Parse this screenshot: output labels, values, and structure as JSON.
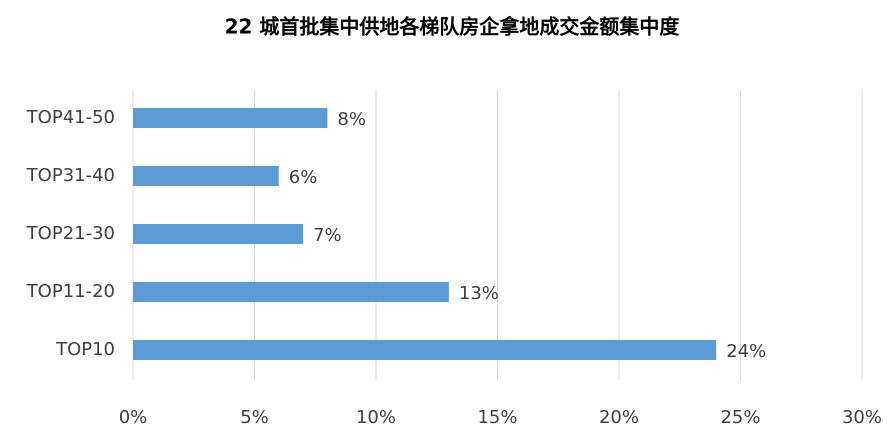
{
  "chart_data": {
    "type": "hbar",
    "title": "22 城首批集中供地各梯队房企拿地成交金额集中度",
    "categories": [
      "TOP41-50",
      "TOP31-40",
      "TOP21-30",
      "TOP11-20",
      "TOP10"
    ],
    "values": [
      8,
      6,
      7,
      13,
      24
    ],
    "value_labels": [
      "8%",
      "6%",
      "7%",
      "13%",
      "24%"
    ],
    "color": "#5b9bd5",
    "xlim": [
      0,
      30
    ],
    "xticks": [
      {
        "value": 0,
        "label": "0%"
      },
      {
        "value": 5,
        "label": "5%"
      },
      {
        "value": 10,
        "label": "10%"
      },
      {
        "value": 15,
        "label": "15%"
      },
      {
        "value": 20,
        "label": "20%"
      },
      {
        "value": 25,
        "label": "25%"
      },
      {
        "value": 30,
        "label": "30%"
      }
    ],
    "grid": true
  }
}
